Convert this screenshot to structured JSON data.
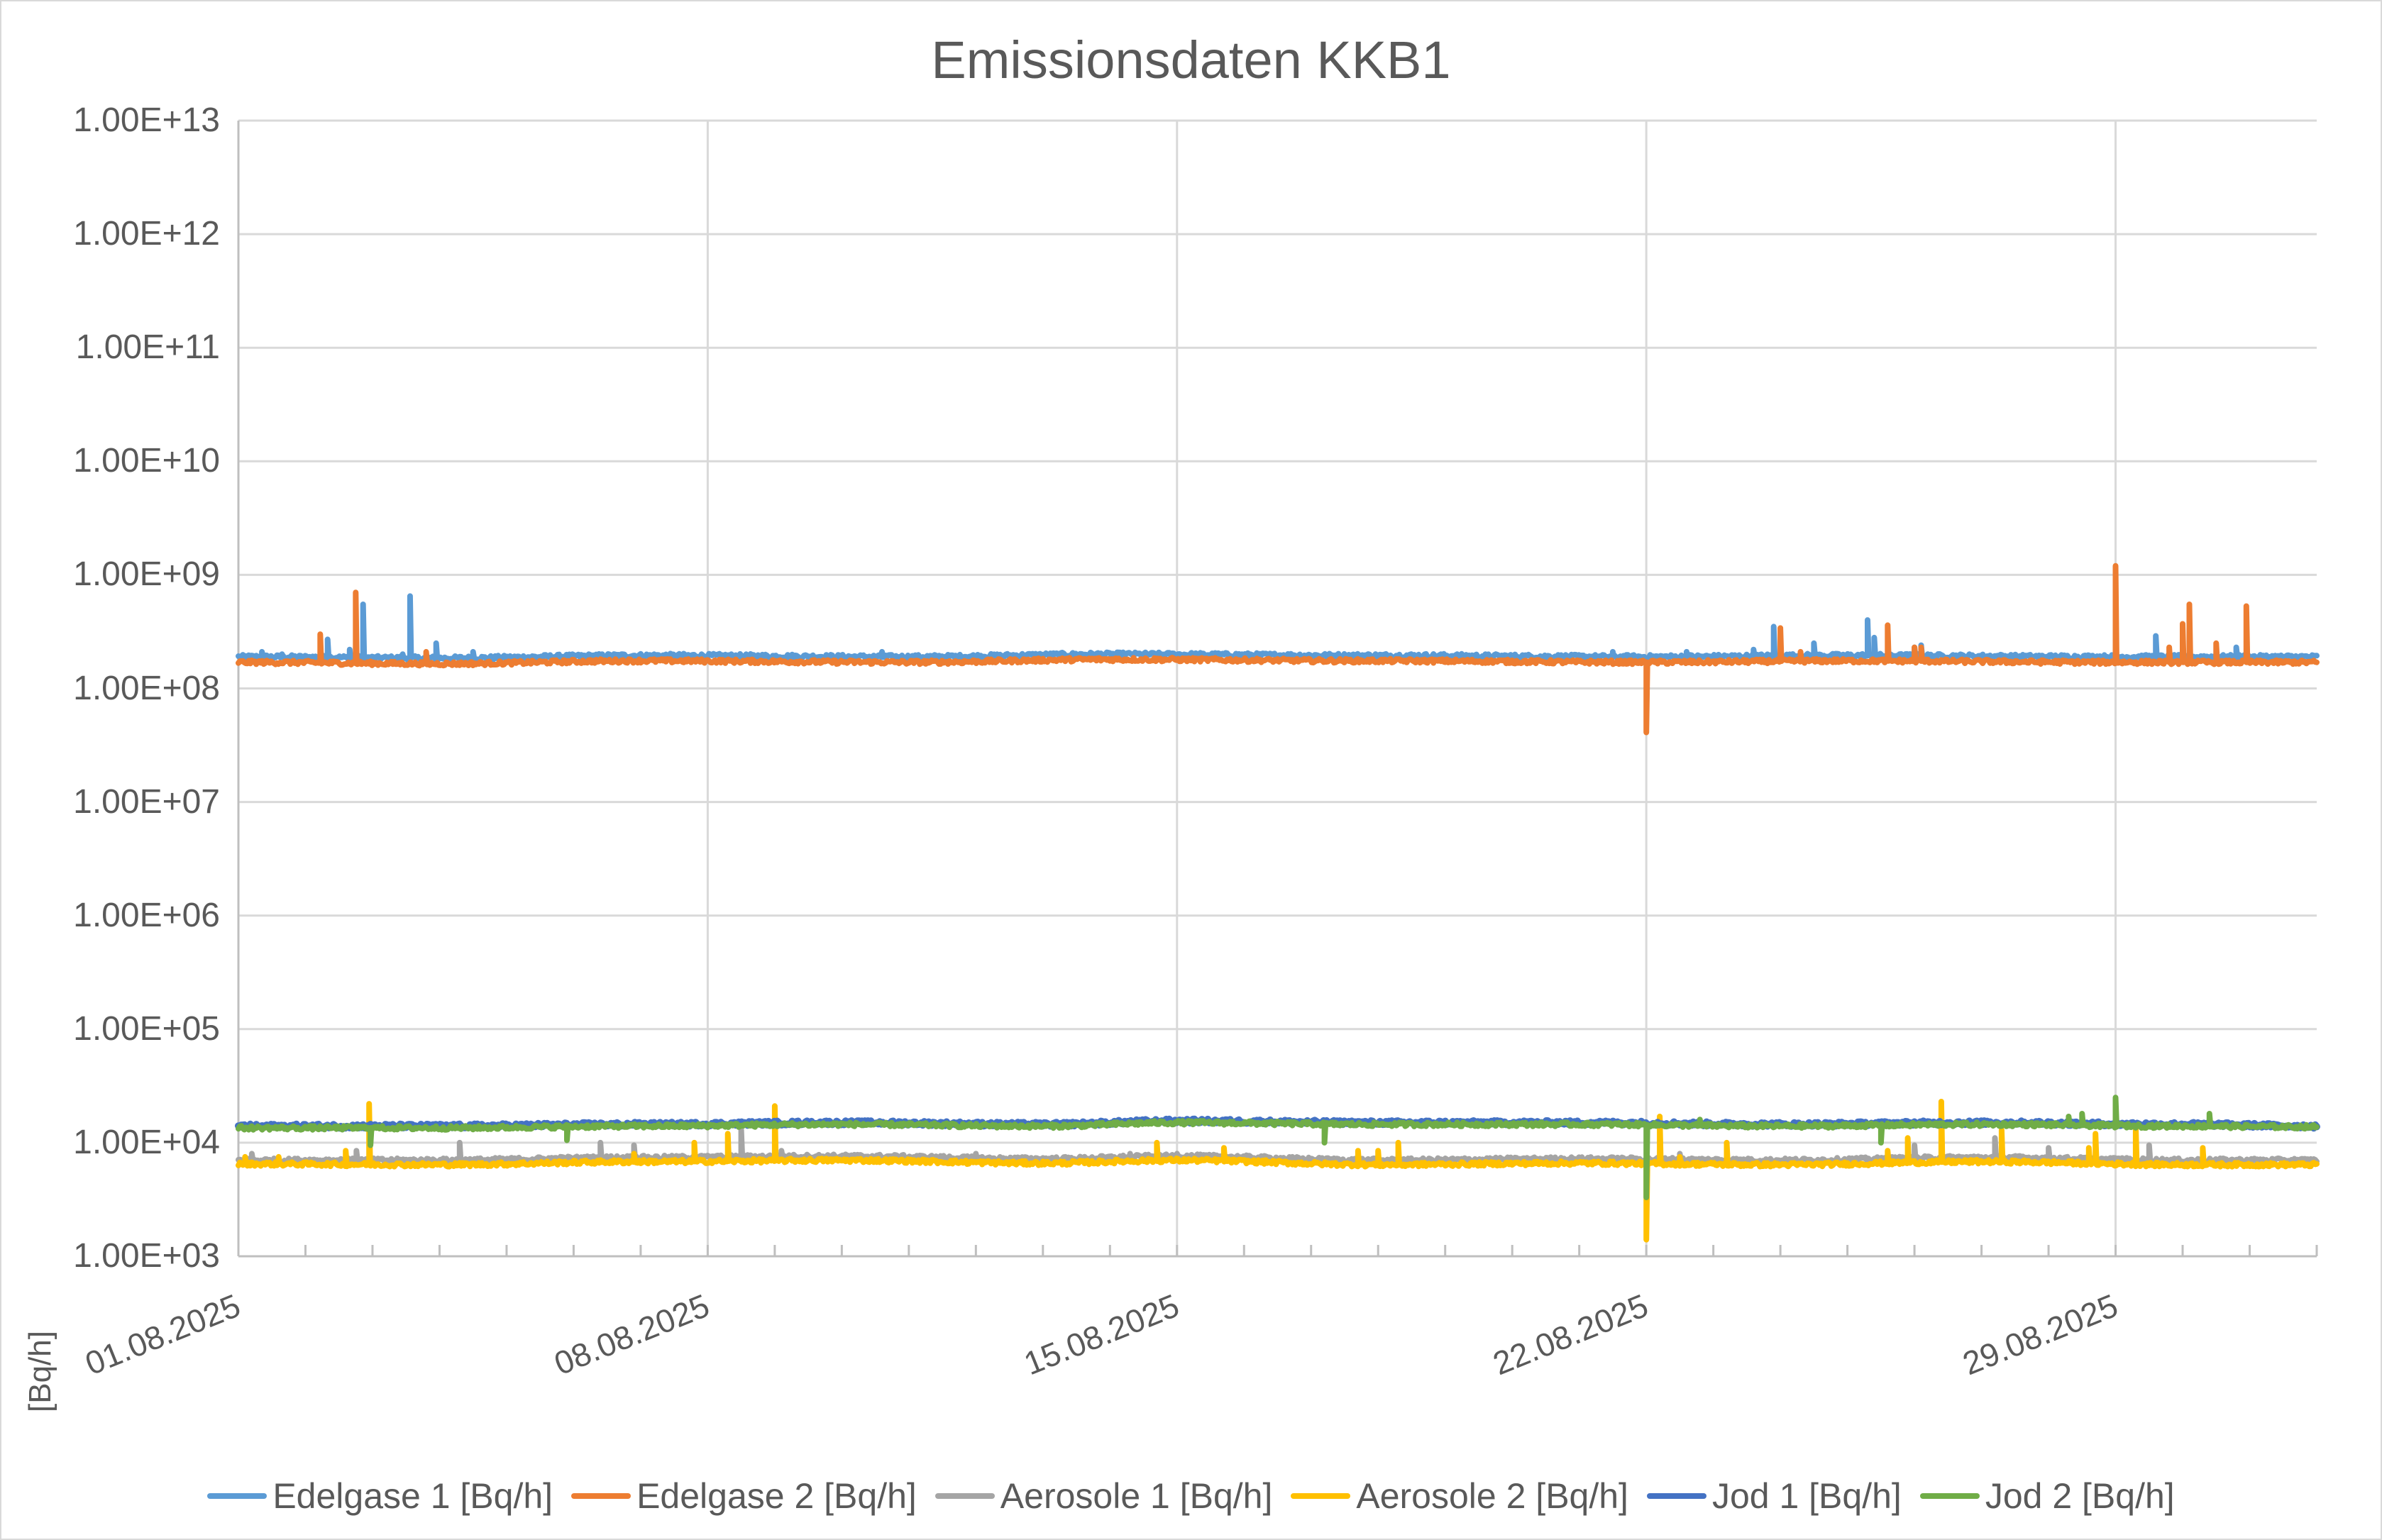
{
  "chart_data": {
    "type": "line",
    "title": "Emissionsdaten KKB1",
    "xlabel": "",
    "ylabel": "[Bq/h]",
    "yscale": "log",
    "ylim": [
      1000.0,
      10000000000000.0
    ],
    "xlim": [
      "01.08.2025",
      "01.09.2025"
    ],
    "grid": true,
    "legend_position": "bottom",
    "y_tick_labels": [
      "1.00E+13",
      "1.00E+12",
      "1.00E+11",
      "1.00E+10",
      "1.00E+09",
      "1.00E+08",
      "1.00E+07",
      "1.00E+06",
      "1.00E+05",
      "1.00E+04",
      "1.00E+03"
    ],
    "x_tick_labels": [
      "01.08.2025",
      "08.08.2025",
      "15.08.2025",
      "22.08.2025",
      "29.08.2025"
    ],
    "x_tick_days": [
      0,
      7,
      14,
      21,
      28
    ],
    "total_days": 31,
    "series": [
      {
        "name": "Edelgase 1 [Bq/h]",
        "color": "#5b9bd5",
        "baseline": 200000000.0,
        "baseline_wave": [
          [
            0,
            190000000.0
          ],
          [
            3,
            185000000.0
          ],
          [
            6,
            195000000.0
          ],
          [
            10,
            190000000.0
          ],
          [
            13,
            200000000.0
          ],
          [
            17,
            195000000.0
          ],
          [
            21,
            190000000.0
          ],
          [
            24,
            195000000.0
          ],
          [
            28,
            190000000.0
          ],
          [
            31,
            190000000.0
          ]
        ],
        "spikes": [
          [
            0.35,
            210000000.0
          ],
          [
            0.65,
            200000000.0
          ],
          [
            1.33,
            270000000.0
          ],
          [
            1.66,
            220000000.0
          ],
          [
            1.86,
            550000000.0
          ],
          [
            2.45,
            200000000.0
          ],
          [
            2.56,
            650000000.0
          ],
          [
            2.95,
            250000000.0
          ],
          [
            3.5,
            210000000.0
          ],
          [
            9.6,
            210000000.0
          ],
          [
            20.5,
            210000000.0
          ],
          [
            21.6,
            210000000.0
          ],
          [
            22.6,
            220000000.0
          ],
          [
            22.9,
            350000000.0
          ],
          [
            23.5,
            250000000.0
          ],
          [
            24.3,
            400000000.0
          ],
          [
            24.4,
            280000000.0
          ],
          [
            25.0,
            230000000.0
          ],
          [
            25.1,
            240000000.0
          ],
          [
            28.6,
            290000000.0
          ],
          [
            29.8,
            230000000.0
          ]
        ]
      },
      {
        "name": "Edelgase 2 [Bq/h]",
        "color": "#ed7d31",
        "baseline": 175000000.0,
        "baseline_wave": [
          [
            0,
            170000000.0
          ],
          [
            3,
            165000000.0
          ],
          [
            6,
            175000000.0
          ],
          [
            10,
            170000000.0
          ],
          [
            13,
            180000000.0
          ],
          [
            17,
            175000000.0
          ],
          [
            21,
            170000000.0
          ],
          [
            24,
            175000000.0
          ],
          [
            28,
            170000000.0
          ],
          [
            31,
            170000000.0
          ]
        ],
        "spikes": [
          [
            1.22,
            300000000.0
          ],
          [
            1.75,
            700000000.0
          ],
          [
            2.8,
            210000000.0
          ],
          [
            21.0,
            41000000.0
          ],
          [
            23.0,
            340000000.0
          ],
          [
            23.3,
            210000000.0
          ],
          [
            24.6,
            360000000.0
          ],
          [
            25.0,
            230000000.0
          ],
          [
            25.1,
            230000000.0
          ],
          [
            28.0,
            1200000000.0
          ],
          [
            28.8,
            230000000.0
          ],
          [
            29.0,
            370000000.0
          ],
          [
            29.1,
            550000000.0
          ],
          [
            29.5,
            250000000.0
          ],
          [
            29.95,
            530000000.0
          ]
        ]
      },
      {
        "name": "Aerosole 1 [Bq/h]",
        "color": "#a5a5a5",
        "baseline": 7000.0,
        "baseline_wave": [
          [
            0,
            7000.0
          ],
          [
            3,
            7000.0
          ],
          [
            6,
            7400.0
          ],
          [
            9,
            7600.0
          ],
          [
            12,
            7200.0
          ],
          [
            14,
            7600.0
          ],
          [
            17,
            7000.0
          ],
          [
            20,
            7200.0
          ],
          [
            23,
            7000.0
          ],
          [
            26,
            7400.0
          ],
          [
            29,
            7000.0
          ],
          [
            31,
            7000.0
          ]
        ],
        "spikes": [
          [
            0.2,
            8000.0
          ],
          [
            1.76,
            8500.0
          ],
          [
            3.3,
            10000.0
          ],
          [
            5.4,
            10000.0
          ],
          [
            5.9,
            9500.0
          ],
          [
            7.5,
            13000.0
          ],
          [
            8.1,
            8500.0
          ],
          [
            11.0,
            8000.0
          ],
          [
            13.3,
            8000.0
          ],
          [
            14.0,
            8000.0
          ],
          [
            21.5,
            8000.0
          ],
          [
            25.0,
            9500.0
          ],
          [
            26.2,
            11000.0
          ],
          [
            27.0,
            9000.0
          ],
          [
            28.5,
            9500.0
          ]
        ]
      },
      {
        "name": "Aerosole 2 [Bq/h]",
        "color": "#ffc000",
        "baseline": 6500.0,
        "baseline_wave": [
          [
            0,
            6500.0
          ],
          [
            3,
            6400.0
          ],
          [
            6,
            6800.0
          ],
          [
            9,
            7000.0
          ],
          [
            12,
            6600.0
          ],
          [
            14,
            7000.0
          ],
          [
            17,
            6400.0
          ],
          [
            20,
            6600.0
          ],
          [
            23,
            6400.0
          ],
          [
            26,
            6800.0
          ],
          [
            29,
            6400.0
          ],
          [
            31,
            6400.0
          ]
        ],
        "spikes": [
          [
            0.1,
            7500.0
          ],
          [
            0.6,
            7500.0
          ],
          [
            1.6,
            8500.0
          ],
          [
            1.95,
            22000.0
          ],
          [
            5.9,
            8000.0
          ],
          [
            6.8,
            10000.0
          ],
          [
            7.3,
            12000.0
          ],
          [
            8.0,
            21000.0
          ],
          [
            13.7,
            10000.0
          ],
          [
            14.7,
            9000.0
          ],
          [
            16.7,
            8500.0
          ],
          [
            17.0,
            8500.0
          ],
          [
            17.3,
            10000.0
          ],
          [
            21.0,
            1400.0
          ],
          [
            21.2,
            17000.0
          ],
          [
            21.5,
            7500.0
          ],
          [
            22.2,
            10000.0
          ],
          [
            24.6,
            8500.0
          ],
          [
            24.9,
            11000.0
          ],
          [
            25.4,
            23000.0
          ],
          [
            26.3,
            13000.0
          ],
          [
            27.6,
            9000.0
          ],
          [
            27.7,
            12000.0
          ],
          [
            28.3,
            14000.0
          ],
          [
            29.3,
            9000.0
          ]
        ]
      },
      {
        "name": "Jod 1 [Bq/h]",
        "color": "#4472c4",
        "baseline": 14500.0,
        "baseline_wave": [
          [
            0,
            14000.0
          ],
          [
            3,
            14000.0
          ],
          [
            6,
            14500.0
          ],
          [
            9,
            15000.0
          ],
          [
            12,
            14500.0
          ],
          [
            14,
            15500.0
          ],
          [
            17,
            15000.0
          ],
          [
            20,
            15000.0
          ],
          [
            23,
            14500.0
          ],
          [
            26,
            15000.0
          ],
          [
            29,
            14500.0
          ],
          [
            31,
            14000.0
          ]
        ],
        "spikes": []
      },
      {
        "name": "Jod 2 [Bq/h]",
        "color": "#70ad47",
        "baseline": 14000.0,
        "baseline_wave": [
          [
            0,
            13500.0
          ],
          [
            3,
            13500.0
          ],
          [
            6,
            14000.0
          ],
          [
            9,
            14500.0
          ],
          [
            12,
            14000.0
          ],
          [
            14,
            15000.0
          ],
          [
            17,
            14500.0
          ],
          [
            20,
            14500.0
          ],
          [
            23,
            14000.0
          ],
          [
            26,
            14500.0
          ],
          [
            29,
            14000.0
          ],
          [
            31,
            13800.0
          ]
        ],
        "spikes": [
          [
            1.97,
            9500.0
          ],
          [
            4.9,
            10500.0
          ],
          [
            16.2,
            10000.0
          ],
          [
            21.0,
            3300.0
          ],
          [
            21.8,
            16000.0
          ],
          [
            24.5,
            10000.0
          ],
          [
            27.3,
            17000.0
          ],
          [
            27.5,
            18000.0
          ],
          [
            28.0,
            25000.0
          ],
          [
            29.4,
            18000.0
          ]
        ]
      }
    ]
  },
  "legend": {
    "items": [
      {
        "label": "Edelgase 1 [Bq/h]",
        "color": "#5b9bd5"
      },
      {
        "label": "Edelgase 2 [Bq/h]",
        "color": "#ed7d31"
      },
      {
        "label": "Aerosole 1 [Bq/h]",
        "color": "#a5a5a5"
      },
      {
        "label": "Aerosole 2 [Bq/h]",
        "color": "#ffc000"
      },
      {
        "label": "Jod 1 [Bq/h]",
        "color": "#4472c4"
      },
      {
        "label": "Jod 2 [Bq/h]",
        "color": "#70ad47"
      }
    ]
  },
  "colors": {
    "gridline": "#d9d9d9",
    "axis": "#bfbfbf",
    "text": "#595959"
  }
}
